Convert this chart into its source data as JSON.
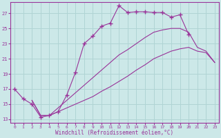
{
  "xlabel": "Windchill (Refroidissement éolien,°C)",
  "ylabel": "",
  "xlim": [
    0,
    23
  ],
  "ylim": [
    13,
    28
  ],
  "xticks": [
    0,
    1,
    2,
    3,
    4,
    5,
    6,
    7,
    8,
    9,
    10,
    11,
    12,
    13,
    14,
    15,
    16,
    17,
    18,
    19,
    20,
    21,
    22,
    23
  ],
  "yticks": [
    13,
    15,
    17,
    19,
    21,
    23,
    25,
    27
  ],
  "bg_color": "#cce8e8",
  "grid_color": "#b0d4d4",
  "line_color": "#993399",
  "line1_x": [
    0,
    1,
    2,
    3,
    4,
    5,
    6,
    7,
    8,
    9,
    10,
    11,
    12,
    13,
    14,
    15,
    16,
    17,
    18,
    19,
    20
  ],
  "line1_y": [
    17.0,
    15.7,
    15.0,
    13.3,
    13.5,
    14.0,
    16.2,
    19.2,
    23.0,
    24.0,
    25.3,
    25.7,
    28.0,
    27.1,
    27.2,
    27.2,
    27.1,
    27.1,
    26.5,
    26.8,
    24.2
  ],
  "line2_x": [
    2,
    3,
    4,
    5,
    6,
    7,
    8,
    9,
    10,
    11,
    12,
    13,
    14,
    15,
    16,
    17,
    18,
    19,
    20,
    21,
    22,
    23
  ],
  "line2_y": [
    15.5,
    13.5,
    13.5,
    14.0,
    14.5,
    15.0,
    15.5,
    16.0,
    16.7,
    17.3,
    18.0,
    18.7,
    19.5,
    20.2,
    21.0,
    21.5,
    22.0,
    22.3,
    22.5,
    22.0,
    21.8,
    20.5
  ],
  "line3_x": [
    2,
    3,
    4,
    5,
    6,
    7,
    8,
    9,
    10,
    11,
    12,
    13,
    14,
    15,
    16,
    17,
    18,
    19,
    20,
    21,
    22,
    23
  ],
  "line3_y": [
    15.5,
    13.5,
    13.5,
    14.5,
    15.5,
    16.5,
    17.5,
    18.5,
    19.5,
    20.5,
    21.5,
    22.2,
    23.0,
    23.8,
    24.5,
    24.8,
    25.0,
    25.0,
    24.5,
    22.5,
    22.0,
    20.5
  ]
}
